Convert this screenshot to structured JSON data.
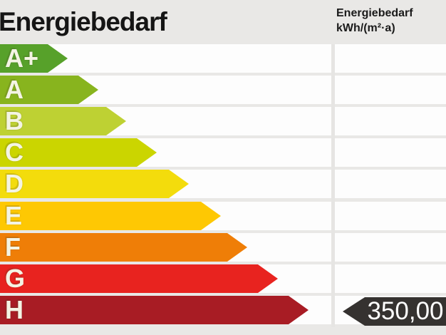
{
  "page": {
    "background_color": "#e9e8e6",
    "row_color": "#fdfdfd"
  },
  "header": {
    "title": "Energiebedarf",
    "unit_header": {
      "line1": "Energiebedarf",
      "line2": "kWh/(m²·a)"
    }
  },
  "scale": {
    "rows": [
      {
        "label": "A+",
        "color": "#57a12a",
        "length": 95
      },
      {
        "label": "A",
        "color": "#88b41e",
        "length": 138
      },
      {
        "label": "B",
        "color": "#bed133",
        "length": 177
      },
      {
        "label": "C",
        "color": "#cbd500",
        "length": 220
      },
      {
        "label": "D",
        "color": "#f3dc0c",
        "length": 265
      },
      {
        "label": "E",
        "color": "#fec803",
        "length": 310
      },
      {
        "label": "F",
        "color": "#ef7e07",
        "length": 347
      },
      {
        "label": "G",
        "color": "#e8231f",
        "length": 390
      },
      {
        "label": "H",
        "color": "#a81c24",
        "length": 433
      }
    ]
  },
  "value_tag": {
    "text": "350,00",
    "row": "H",
    "color": "#353230",
    "text_color": "#ffffff"
  },
  "chart_data": {
    "type": "bar",
    "orientation": "horizontal",
    "title": "Energiebedarf",
    "value_axis_label": "Energiebedarf kWh/(m²·a)",
    "categories": [
      "A+",
      "A",
      "B",
      "C",
      "D",
      "E",
      "F",
      "G",
      "H"
    ],
    "series": [
      {
        "name": "scale-arrow-length-px",
        "values": [
          95,
          138,
          177,
          220,
          265,
          310,
          347,
          390,
          433
        ]
      }
    ],
    "colors": [
      "#57a12a",
      "#88b41e",
      "#bed133",
      "#cbd500",
      "#f3dc0c",
      "#fec803",
      "#ef7e07",
      "#e8231f",
      "#a81c24"
    ],
    "highlighted_value": "350,00",
    "highlighted_unit": "kWh/(m²·a)",
    "highlighted_category": "H",
    "grid": "row-separators",
    "legend": "none"
  }
}
